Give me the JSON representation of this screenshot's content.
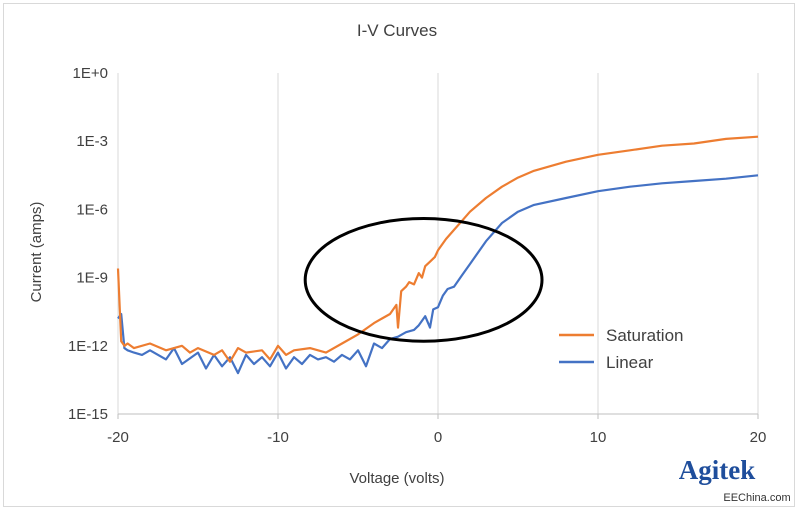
{
  "chart_data": {
    "type": "line",
    "title": "I-V Curves",
    "xlabel": "Voltage (volts)",
    "ylabel": "Current (amps)",
    "xlim": [
      -20,
      20
    ],
    "ylim_log10": [
      -15,
      0
    ],
    "y_scale": "log",
    "x_ticks": [
      "-20",
      "-10",
      "0",
      "10",
      "20"
    ],
    "x_tick_values": [
      -20,
      -10,
      0,
      10,
      20
    ],
    "y_ticks": [
      "1E+0",
      "1E-3",
      "1E-6",
      "1E-9",
      "1E-12",
      "1E-15"
    ],
    "y_tick_values": [
      0,
      -3,
      -6,
      -9,
      -12,
      -15
    ],
    "grid": "vertical",
    "legend_position": "bottom-right",
    "series": [
      {
        "name": "Saturation",
        "color": "#ed7d31",
        "x": [
          -20,
          -19.8,
          -19.6,
          -19.4,
          -19,
          -18,
          -17,
          -16,
          -15.5,
          -15,
          -14,
          -13.5,
          -13,
          -12.5,
          -12,
          -11,
          -10.5,
          -10,
          -9.5,
          -9,
          -8,
          -7,
          -6,
          -5,
          -4,
          -3.5,
          -3,
          -2.6,
          -2.5,
          -2.3,
          -2,
          -1.8,
          -1.5,
          -1.2,
          -1,
          -0.8,
          -0.5,
          -0.2,
          0,
          0.5,
          1,
          1.5,
          2,
          3,
          4,
          5,
          6,
          8,
          10,
          12,
          14,
          16,
          18,
          20
        ],
        "y_log10": [
          -8.6,
          -11.8,
          -12.0,
          -11.9,
          -12.1,
          -11.9,
          -12.2,
          -12.0,
          -12.3,
          -12.1,
          -12.4,
          -12.2,
          -12.7,
          -12.1,
          -12.3,
          -12.2,
          -12.6,
          -12.0,
          -12.4,
          -12.2,
          -12.1,
          -12.3,
          -11.9,
          -11.5,
          -11.0,
          -10.8,
          -10.6,
          -10.2,
          -11.2,
          -9.6,
          -9.4,
          -9.2,
          -9.3,
          -8.8,
          -9.0,
          -8.5,
          -8.3,
          -8.1,
          -7.8,
          -7.3,
          -6.9,
          -6.5,
          -6.1,
          -5.5,
          -5.0,
          -4.6,
          -4.3,
          -3.9,
          -3.6,
          -3.4,
          -3.2,
          -3.1,
          -2.9,
          -2.8
        ]
      },
      {
        "name": "Linear",
        "color": "#4472c4",
        "x": [
          -20,
          -19.8,
          -19.6,
          -19.4,
          -19,
          -18.5,
          -18,
          -17,
          -16.5,
          -16,
          -15,
          -14.5,
          -14,
          -13.5,
          -13,
          -12.5,
          -12,
          -11.5,
          -11,
          -10.5,
          -10,
          -9.5,
          -9,
          -8.5,
          -8,
          -7.5,
          -7,
          -6.5,
          -6,
          -5.5,
          -5,
          -4.5,
          -4,
          -3.5,
          -3,
          -2.5,
          -2,
          -1.5,
          -1.2,
          -1,
          -0.8,
          -0.5,
          -0.3,
          0,
          0.3,
          0.6,
          1,
          1.5,
          2,
          3,
          4,
          5,
          6,
          8,
          10,
          12,
          14,
          16,
          18,
          20
        ],
        "y_log10": [
          -10.8,
          -10.6,
          -12.1,
          -12.2,
          -12.3,
          -12.4,
          -12.2,
          -12.6,
          -12.1,
          -12.8,
          -12.3,
          -13.0,
          -12.4,
          -12.9,
          -12.5,
          -13.2,
          -12.4,
          -12.8,
          -12.5,
          -12.9,
          -12.3,
          -13.0,
          -12.5,
          -12.8,
          -12.4,
          -12.6,
          -12.5,
          -12.7,
          -12.4,
          -12.6,
          -12.2,
          -12.9,
          -11.9,
          -12.1,
          -11.7,
          -11.6,
          -11.4,
          -11.3,
          -11.1,
          -10.9,
          -10.7,
          -11.2,
          -10.4,
          -10.3,
          -9.8,
          -9.5,
          -9.4,
          -8.9,
          -8.4,
          -7.4,
          -6.6,
          -6.1,
          -5.8,
          -5.5,
          -5.2,
          -5.0,
          -4.85,
          -4.75,
          -4.65,
          -4.5
        ]
      }
    ],
    "annotations": [
      {
        "type": "circle",
        "stroke": "#000000",
        "cx": -0.9,
        "cy_log10": -9.1,
        "rx": 7.4,
        "ry_log10": 2.7
      }
    ]
  },
  "watermark": {
    "brand": "Agitek",
    "site": "EEChina.com",
    "brand_color": "#1f4e9c"
  }
}
